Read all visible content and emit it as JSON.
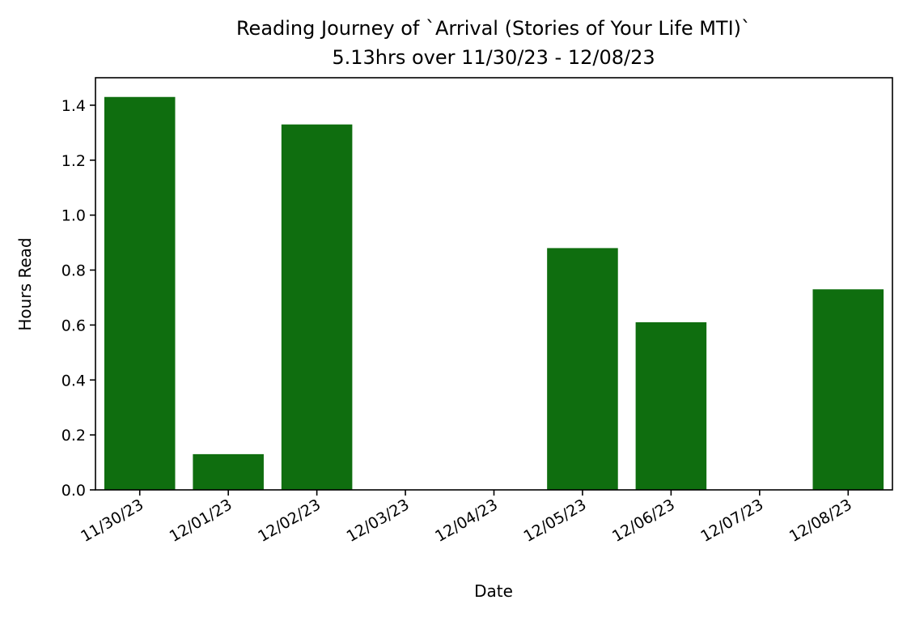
{
  "chart_data": {
    "type": "bar",
    "title": "Reading Journey of `Arrival (Stories of Your Life MTI)`",
    "subtitle": "5.13hrs over 11/30/23 - 12/08/23",
    "xlabel": "Date",
    "ylabel": "Hours Read",
    "categories": [
      "11/30/23",
      "12/01/23",
      "12/02/23",
      "12/03/23",
      "12/04/23",
      "12/05/23",
      "12/06/23",
      "12/07/23",
      "12/08/23"
    ],
    "values": [
      1.43,
      0.13,
      1.33,
      0.0,
      0.0,
      0.88,
      0.61,
      0.0,
      0.73
    ],
    "ylim": [
      0,
      1.5
    ],
    "yticks": [
      "0.0",
      "0.2",
      "0.4",
      "0.6",
      "0.8",
      "1.0",
      "1.2",
      "1.4"
    ],
    "grid": false,
    "legend": "none",
    "bar_color": "#0f6e0f"
  }
}
